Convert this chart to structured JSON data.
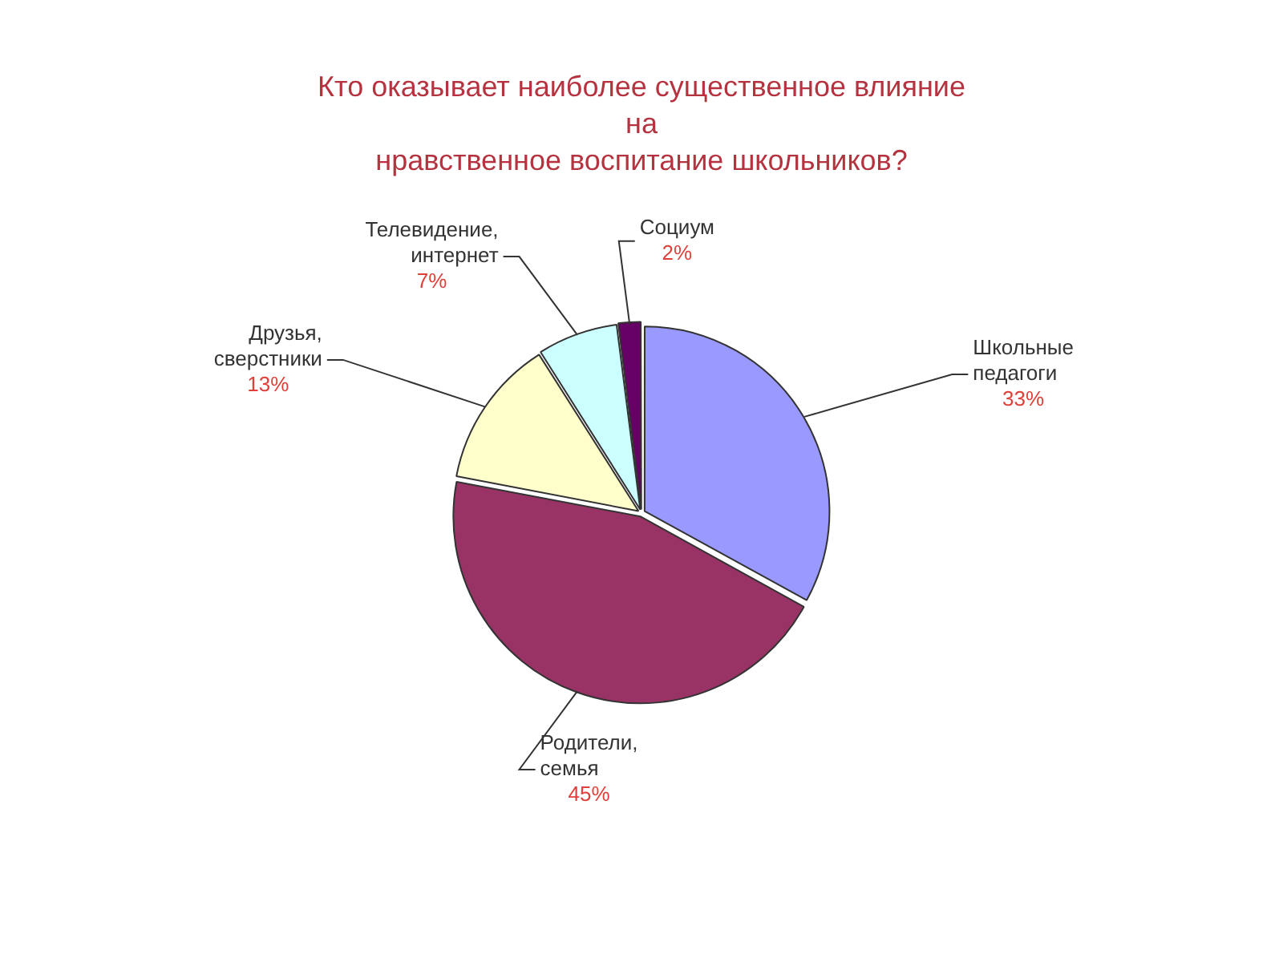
{
  "chart_data": {
    "type": "pie",
    "title": "Кто оказывает наиболее существенное влияние\nна\nнравственное воспитание школьников?",
    "categories": [
      "Школьные педагоги",
      "Родители, семья",
      "Друзья, сверстники",
      "Телевидение, интернет",
      "Социум"
    ],
    "values": [
      33,
      45,
      13,
      7,
      2
    ],
    "value_labels": [
      "33%",
      "45%",
      "13%",
      "7%",
      "2%"
    ],
    "colors": [
      "#9999ff",
      "#993366",
      "#ffffcc",
      "#ccffff",
      "#660066"
    ]
  }
}
